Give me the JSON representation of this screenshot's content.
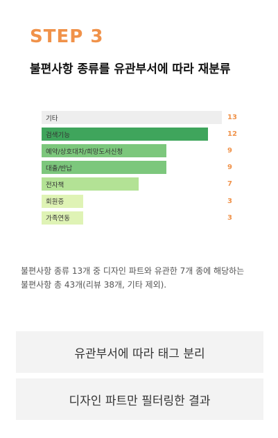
{
  "step": "STEP 3",
  "title": "불편사항 종류를 유관부서에 따라 재분류",
  "chart_data": {
    "type": "bar",
    "orientation": "horizontal",
    "categories": [
      "기타",
      "검색기능",
      "예약/상호대차/희망도서신청",
      "대출/반납",
      "전자책",
      "회원증",
      "가족연동"
    ],
    "values": [
      13,
      12,
      9,
      9,
      7,
      3,
      3
    ],
    "bar_colors": [
      "#eeeeee",
      "#3fa55c",
      "#7cc77c",
      "#7cc77c",
      "#b3e295",
      "#dff3b5",
      "#dff3b5"
    ],
    "value_color": "#f0924a",
    "xlim": [
      0,
      13
    ]
  },
  "description": "불편사항 종류 13개 중 디자인 파트와 유관한 7개 종에 해당하는 불편사항 총 43개(리뷰 38개, 기타 제외).",
  "buttons": {
    "split": "유관부서에 따라 태그 분리",
    "filtered": "디자인 파트만 필터링한 결과"
  }
}
